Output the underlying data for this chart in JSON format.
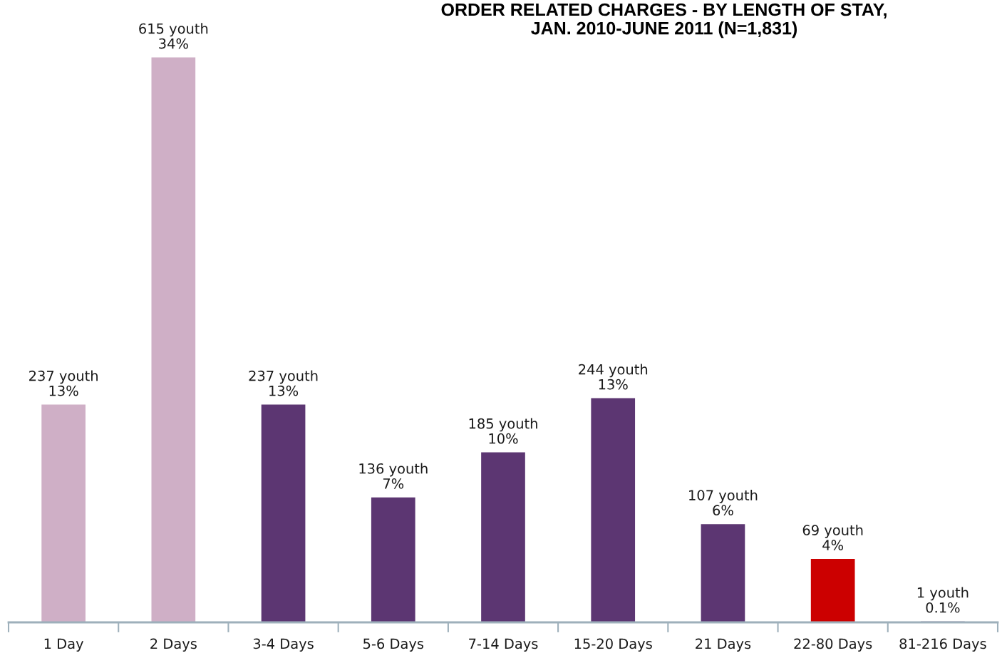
{
  "chart_data": {
    "type": "bar",
    "title": "ORDER RELATED CHARGES - BY LENGTH OF STAY,\nJAN. 2010-JUNE 2011 (N=1,831)",
    "categories": [
      "1 Day",
      "2 Days",
      "3-4 Days",
      "5-6 Days",
      "7-14 Days",
      "15-20 Days",
      "21 Days",
      "22-80 Days",
      "81-216 Days"
    ],
    "values": [
      237,
      615,
      237,
      136,
      185,
      244,
      107,
      69,
      1
    ],
    "colors": [
      "#cfafc6",
      "#cfafc6",
      "#5c3672",
      "#5c3672",
      "#5c3672",
      "#5c3672",
      "#5c3672",
      "#cc0000",
      "#5c3672"
    ],
    "value_labels": [
      "237 youth\n13%",
      "615 youth\n34%",
      "237 youth\n13%",
      "136 youth\n7%",
      "185 youth\n10%",
      "244 youth\n13%",
      "107 youth\n6%",
      "69 youth\n4%",
      "1 youth\n0.1%"
    ],
    "grid": false,
    "legend": false
  }
}
